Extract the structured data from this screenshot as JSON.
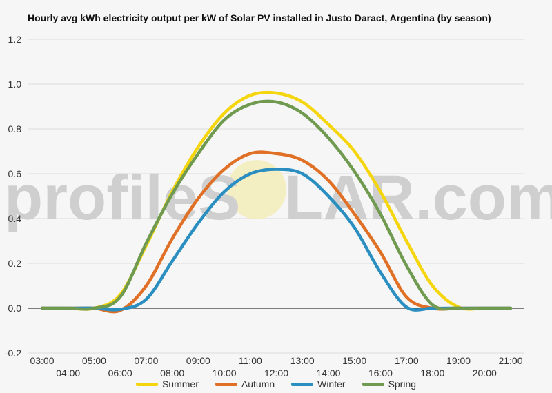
{
  "watermark": {
    "left": "profileS",
    "right": "LAR.com"
  },
  "chart_data": {
    "type": "line",
    "title": "Hourly avg kWh electricity output per kW of Solar PV installed in Justo Daract, Argentina (by season)",
    "xlabel": "",
    "ylabel": "",
    "ylim": [
      -0.2,
      1.2
    ],
    "yticks": [
      "-0.2",
      "0.0",
      "0.2",
      "0.4",
      "0.6",
      "0.8",
      "1.0",
      "1.2"
    ],
    "categories": [
      "03:00",
      "04:00",
      "05:00",
      "06:00",
      "07:00",
      "08:00",
      "09:00",
      "10:00",
      "11:00",
      "12:00",
      "13:00",
      "14:00",
      "15:00",
      "16:00",
      "17:00",
      "18:00",
      "19:00",
      "20:00",
      "21:00"
    ],
    "grid": true,
    "legend": "bottom",
    "series": [
      {
        "name": "Summer",
        "color": "#f5d50e",
        "values": [
          0,
          0,
          0,
          0.06,
          0.28,
          0.52,
          0.72,
          0.87,
          0.95,
          0.96,
          0.92,
          0.82,
          0.7,
          0.52,
          0.3,
          0.1,
          0.005,
          0,
          0
        ]
      },
      {
        "name": "Autumn",
        "color": "#e07025",
        "values": [
          0,
          0,
          0,
          -0.01,
          0.1,
          0.31,
          0.49,
          0.62,
          0.69,
          0.69,
          0.66,
          0.57,
          0.42,
          0.25,
          0.05,
          0,
          0,
          0,
          0
        ]
      },
      {
        "name": "Winter",
        "color": "#2a8fc0",
        "values": [
          0,
          0,
          0,
          -0.005,
          0.04,
          0.21,
          0.38,
          0.52,
          0.6,
          0.62,
          0.6,
          0.5,
          0.36,
          0.16,
          0.005,
          0,
          0,
          0,
          0
        ]
      },
      {
        "name": "Spring",
        "color": "#6f9a50",
        "values": [
          0,
          0,
          0,
          0.05,
          0.29,
          0.51,
          0.69,
          0.84,
          0.91,
          0.92,
          0.87,
          0.76,
          0.61,
          0.42,
          0.19,
          0.015,
          0,
          0,
          0
        ]
      }
    ]
  }
}
